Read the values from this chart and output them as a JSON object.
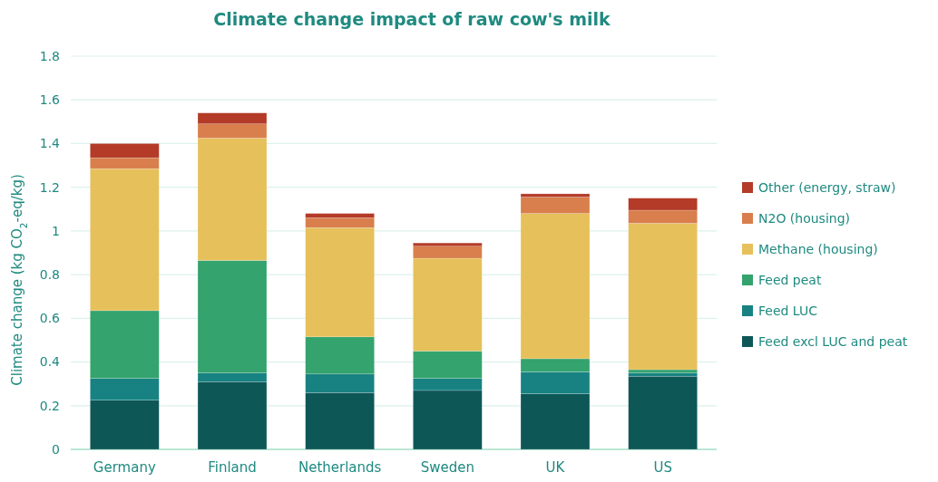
{
  "chart_data": {
    "type": "bar",
    "title": "Climate change impact of raw cow's milk",
    "ylabel": "Climate change (kg CO$_{2}$-eq/kg)",
    "categories": [
      "Germany",
      "Finland",
      "Netherlands",
      "Sweden",
      "UK",
      "US"
    ],
    "stacked": true,
    "series": [
      {
        "name": "Feed excl LUC and peat",
        "color": "#0e5757",
        "values": [
          0.225,
          0.31,
          0.26,
          0.27,
          0.255,
          0.335
        ]
      },
      {
        "name": "Feed LUC",
        "color": "#188282",
        "values": [
          0.1,
          0.04,
          0.085,
          0.055,
          0.1,
          0.015
        ]
      },
      {
        "name": "Feed peat",
        "color": "#34a36e",
        "values": [
          0.31,
          0.515,
          0.17,
          0.125,
          0.06,
          0.015
        ]
      },
      {
        "name": "Methane (housing)",
        "color": "#e6c05a",
        "values": [
          0.65,
          0.56,
          0.5,
          0.425,
          0.665,
          0.67
        ]
      },
      {
        "name": "N2O (housing)",
        "color": "#d87f4d",
        "values": [
          0.05,
          0.065,
          0.045,
          0.055,
          0.075,
          0.06
        ]
      },
      {
        "name": "Other (energy, straw)",
        "color": "#b33b28",
        "values": [
          0.065,
          0.05,
          0.02,
          0.015,
          0.015,
          0.055
        ]
      }
    ],
    "ylim": [
      0,
      1.8
    ],
    "yticks": [
      0,
      0.2,
      0.4,
      0.6,
      0.8,
      1,
      1.2,
      1.4,
      1.6,
      1.8
    ],
    "grid": "y",
    "legend": "right"
  }
}
